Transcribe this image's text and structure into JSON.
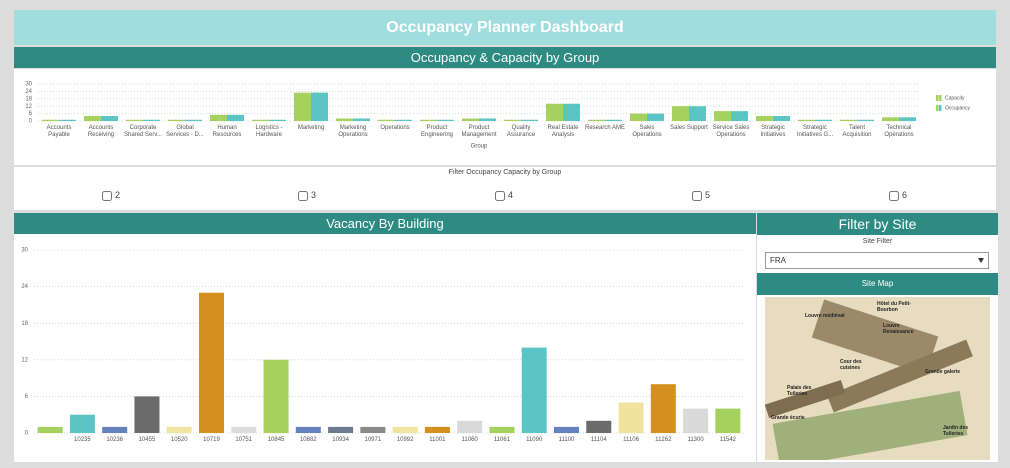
{
  "header": {
    "title": "Occupancy Planner Dashboard"
  },
  "chart_data": [
    {
      "type": "bar",
      "title": "Occupancy & Capacity by Group",
      "xlabel": "Group",
      "categories": [
        "Accounts Payable",
        "Accounts Receiving",
        "Corporate Shared Serv...",
        "Global Services - D...",
        "Human Resources",
        "Logistics - Hardware",
        "Marketing",
        "Marketing Operations",
        "Operations",
        "Product Engineering",
        "Product Management",
        "Quality Assurance",
        "Real Estate Analysis",
        "Research AME",
        "Sales Operations",
        "Sales Support",
        "Service Sales Operations",
        "Strategic Initiatives",
        "Strategic Initiatives G...",
        "Talent Acquisition",
        "Technical Operations"
      ],
      "series": [
        {
          "name": "Capacity",
          "color": "#a5d25f",
          "values": [
            1,
            4,
            1,
            1,
            5,
            1,
            23,
            2,
            1,
            1,
            2,
            1,
            14,
            1,
            6,
            12,
            8,
            4,
            1,
            1,
            3
          ]
        },
        {
          "name": "Occupancy",
          "color": "#5bc4c4",
          "values": [
            1,
            4,
            1,
            1,
            5,
            1,
            23,
            2,
            1,
            1,
            2,
            1,
            14,
            1,
            6,
            12,
            8,
            4,
            1,
            1,
            3
          ]
        }
      ],
      "ylim": [
        0,
        30
      ],
      "yticks": [
        0,
        6,
        12,
        18,
        24,
        30
      ],
      "grid": true,
      "legend": "right"
    },
    {
      "type": "bar",
      "title": "Vacancy By Building",
      "categories": [
        null,
        "10235",
        "10236",
        "10455",
        "10520",
        "10719",
        "10751",
        "10845",
        "10882",
        "10934",
        "10971",
        "10992",
        "11001",
        "11060",
        "11061",
        "11090",
        "11100",
        "11104",
        "11106",
        "11262",
        "11300",
        "11542"
      ],
      "values": [
        1,
        3,
        1,
        6,
        1,
        23,
        1,
        12,
        1,
        1,
        1,
        1,
        1,
        2,
        1,
        14,
        1,
        2,
        5,
        8,
        4,
        4
      ],
      "colors": [
        "#a5d25f",
        "#5bc4c4",
        "#6382be",
        "#6b6b6b",
        "#f0e3a0",
        "#d4901e",
        "#dcdcdc",
        "#a5d25f",
        "#6382be",
        "#6b7a8f",
        "#8a8a8a",
        "#f0e3a0",
        "#d4901e",
        "#d9d9d9",
        "#a5d25f",
        "#5bc4c4",
        "#6382be",
        "#6b6b6b",
        "#f0e3a0",
        "#d4901e",
        "#d9d9d9",
        "#a5d25f"
      ],
      "ylim": [
        0,
        30
      ],
      "yticks": [
        0,
        6,
        12,
        18,
        24,
        30
      ],
      "grid": true
    }
  ],
  "group_filter": {
    "label": "Filter Occupancy Capacity by Group",
    "options": [
      "2",
      "3",
      "4",
      "5",
      "6"
    ]
  },
  "site_filter": {
    "title": "Filter by Site",
    "label": "Site Filter",
    "value": "FRA",
    "button": "Site Map",
    "map_labels": [
      "Hôtel du Petit-Bourbon",
      "Louvre médiéval",
      "Louvre Renaissance",
      "Cour des cuisines",
      "Grande galerie",
      "Palais des Tuileries",
      "Grande écurie",
      "Jardin des Tuileries"
    ]
  }
}
